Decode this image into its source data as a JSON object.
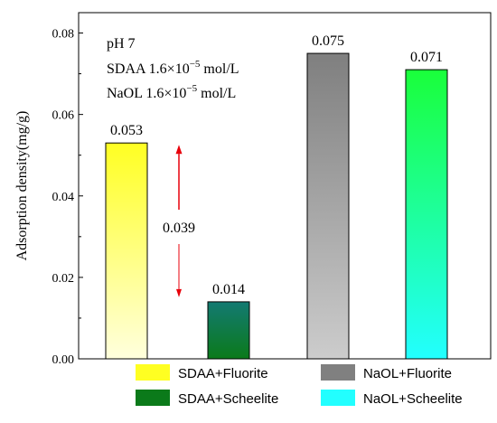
{
  "chart_data": {
    "type": "bar",
    "ylabel": "Adsorption density(mg/g)",
    "xlabel": "",
    "ylim": [
      0,
      0.085
    ],
    "yticks": [
      0.0,
      0.02,
      0.04,
      0.06,
      0.08
    ],
    "ytick_labels": [
      "0.00",
      "0.02",
      "0.04",
      "0.06",
      "0.08"
    ],
    "grid": false,
    "legend_position": "bottom",
    "bars": [
      {
        "name": "SDAA+Fluorite",
        "value": 0.053,
        "label": "0.053",
        "color_top": "#ffff22",
        "color_bottom": "#ffffdd"
      },
      {
        "name": "SDAA+Scheelite",
        "value": 0.014,
        "label": "0.014",
        "color_top": "#137a72",
        "color_bottom": "#0b7a1a"
      },
      {
        "name": "NaOL+Fluorite",
        "value": 0.075,
        "label": "0.075",
        "color_top": "#7f7f7f",
        "color_bottom": "#cccccc"
      },
      {
        "name": "NaOL+Scheelite",
        "value": 0.071,
        "label": "0.071",
        "color_top": "#1aff3a",
        "color_bottom": "#22ffff"
      }
    ],
    "conditions": {
      "line1": "pH 7",
      "line2_prefix": "SDAA 1.6×10",
      "line2_exp": "−5",
      "line2_suffix": " mol/L",
      "line3_prefix": "NaOL 1.6×10",
      "line3_exp": "−5",
      "line3_suffix": " mol/L"
    },
    "difference": {
      "label": "0.039",
      "from": 0.014,
      "to": 0.053,
      "color": "#e8000b"
    },
    "legend": [
      {
        "label": "SDAA+Fluorite",
        "color": "#ffff22"
      },
      {
        "label": "NaOL+Fluorite",
        "color": "#808080"
      },
      {
        "label": "SDAA+Scheelite",
        "color": "#0b7a1a"
      },
      {
        "label": "NaOL+Scheelite",
        "color": "#22ffff"
      }
    ]
  }
}
